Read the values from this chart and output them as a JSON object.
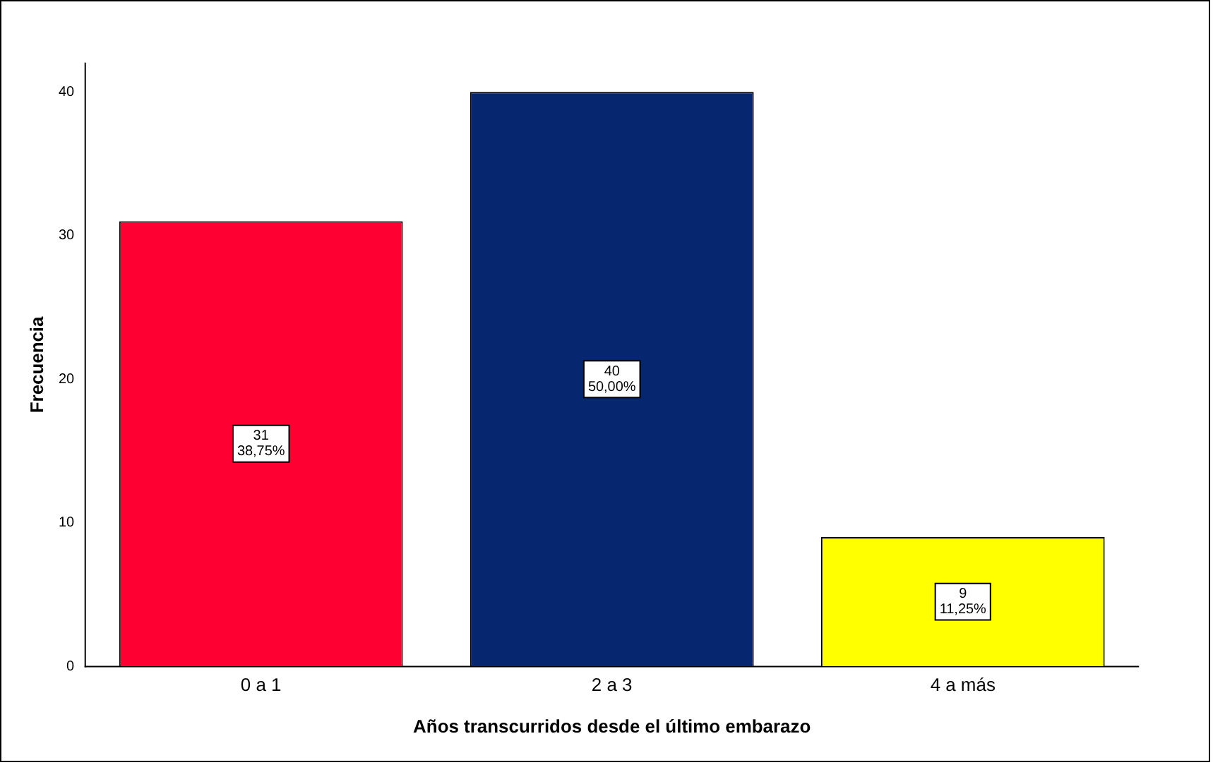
{
  "chart_data": {
    "type": "bar",
    "xlabel": "Años transcurridos desde el último embarazo",
    "ylabel": "Frecuencia",
    "categories": [
      "0 a 1",
      "2 a 3",
      "4 a más"
    ],
    "values": [
      31,
      40,
      9
    ],
    "colors": [
      "#ff0033",
      "#06276f",
      "#ffff00"
    ],
    "value_labels": [
      "31\n38,75%",
      "40\n50,00%",
      "9\n11,25%"
    ],
    "ylim": [
      0,
      42
    ],
    "yticks": [
      0,
      10,
      20,
      30,
      40
    ],
    "grid": false,
    "legend": false
  }
}
